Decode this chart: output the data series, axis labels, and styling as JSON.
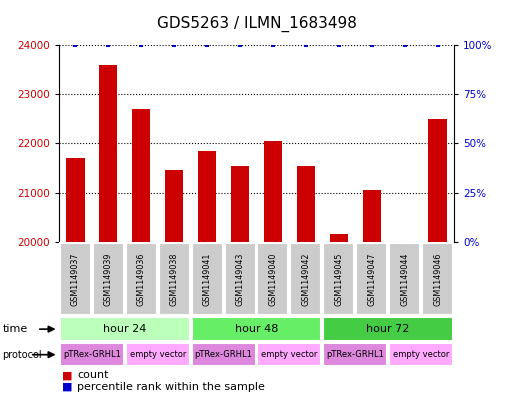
{
  "title": "GDS5263 / ILMN_1683498",
  "samples": [
    "GSM1149037",
    "GSM1149039",
    "GSM1149036",
    "GSM1149038",
    "GSM1149041",
    "GSM1149043",
    "GSM1149040",
    "GSM1149042",
    "GSM1149045",
    "GSM1149047",
    "GSM1149044",
    "GSM1149046"
  ],
  "counts": [
    21700,
    23600,
    22700,
    21450,
    21850,
    21550,
    22050,
    21550,
    20150,
    21050,
    19950,
    22500
  ],
  "percentile_ranks": [
    100,
    100,
    100,
    100,
    100,
    100,
    100,
    100,
    100,
    100,
    100,
    100
  ],
  "ylim_left": [
    20000,
    24000
  ],
  "ylim_right": [
    0,
    100
  ],
  "yticks_left": [
    20000,
    21000,
    22000,
    23000,
    24000
  ],
  "yticks_right": [
    0,
    25,
    50,
    75,
    100
  ],
  "bar_color": "#cc0000",
  "percentile_color": "#0000cc",
  "time_groups": [
    {
      "label": "hour 24",
      "start": 0,
      "end": 4,
      "color": "#bbffbb"
    },
    {
      "label": "hour 48",
      "start": 4,
      "end": 8,
      "color": "#66ee66"
    },
    {
      "label": "hour 72",
      "start": 8,
      "end": 12,
      "color": "#44cc44"
    }
  ],
  "protocol_groups": [
    {
      "label": "pTRex-GRHL1",
      "start": 0,
      "end": 2,
      "color": "#dd88dd"
    },
    {
      "label": "empty vector",
      "start": 2,
      "end": 4,
      "color": "#ffaaff"
    },
    {
      "label": "pTRex-GRHL1",
      "start": 4,
      "end": 6,
      "color": "#dd88dd"
    },
    {
      "label": "empty vector",
      "start": 6,
      "end": 8,
      "color": "#ffaaff"
    },
    {
      "label": "pTRex-GRHL1",
      "start": 8,
      "end": 10,
      "color": "#dd88dd"
    },
    {
      "label": "empty vector",
      "start": 10,
      "end": 12,
      "color": "#ffaaff"
    }
  ],
  "sample_box_color": "#cccccc",
  "background_color": "#ffffff",
  "title_fontsize": 11,
  "tick_fontsize": 7.5,
  "legend_fontsize": 8
}
